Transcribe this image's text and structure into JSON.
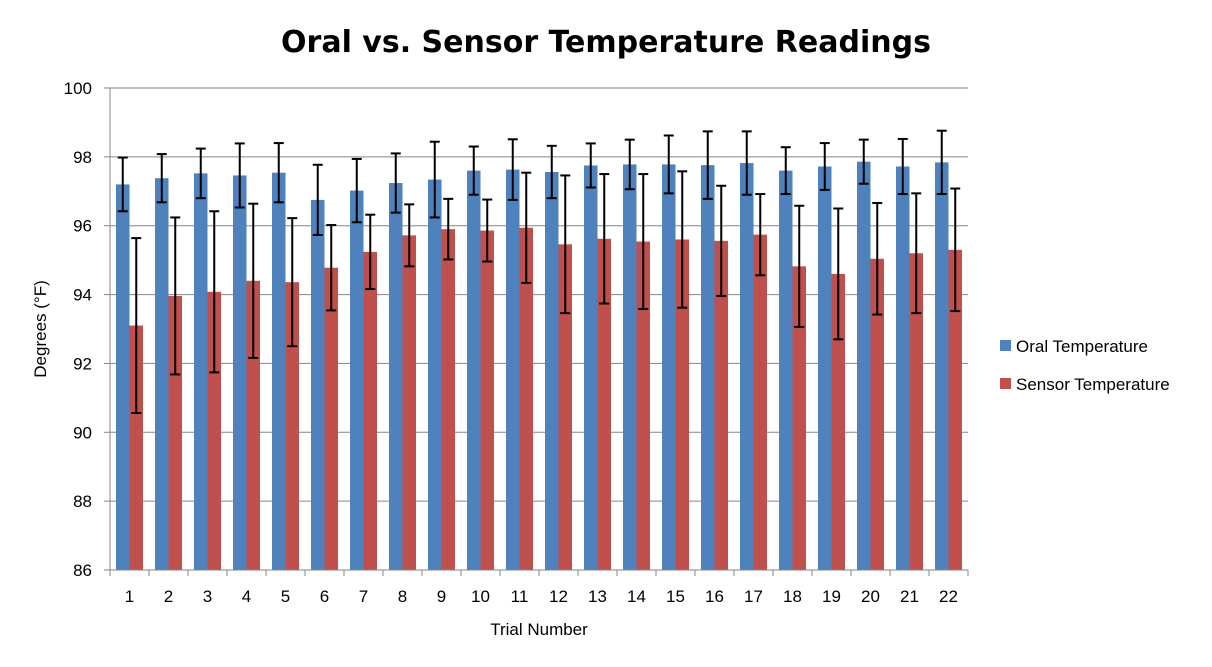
{
  "chart_data": {
    "type": "bar",
    "title": "Oral vs. Sensor Temperature Readings",
    "xlabel": "Trial Number",
    "ylabel": "Degrees (°F)",
    "ylim": [
      86,
      100
    ],
    "yticks": [
      86,
      88,
      90,
      92,
      94,
      96,
      98,
      100
    ],
    "grid": true,
    "legend_position": "right",
    "categories": [
      "1",
      "2",
      "3",
      "4",
      "5",
      "6",
      "7",
      "8",
      "9",
      "10",
      "11",
      "12",
      "13",
      "14",
      "15",
      "16",
      "17",
      "18",
      "19",
      "20",
      "21",
      "22"
    ],
    "series": [
      {
        "name": "Oral Temperature",
        "color": "#4f81bd",
        "values": [
          97.2,
          97.38,
          97.52,
          97.46,
          97.54,
          96.75,
          97.02,
          97.24,
          97.34,
          97.6,
          97.63,
          97.56,
          97.75,
          97.78,
          97.78,
          97.76,
          97.82,
          97.6,
          97.72,
          97.86,
          97.72,
          97.84
        ],
        "errors": [
          0.78,
          0.7,
          0.72,
          0.93,
          0.86,
          1.02,
          0.92,
          0.86,
          1.1,
          0.7,
          0.88,
          0.76,
          0.64,
          0.72,
          0.84,
          0.98,
          0.92,
          0.68,
          0.68,
          0.64,
          0.8,
          0.92
        ]
      },
      {
        "name": "Sensor Temperature",
        "color": "#c0504d",
        "values": [
          93.1,
          93.96,
          94.08,
          94.4,
          94.36,
          94.78,
          95.24,
          95.72,
          95.9,
          95.86,
          95.94,
          95.46,
          95.62,
          95.54,
          95.6,
          95.56,
          95.74,
          94.82,
          94.6,
          95.04,
          95.2,
          95.3
        ],
        "errors": [
          2.54,
          2.28,
          2.34,
          2.24,
          1.86,
          1.24,
          1.08,
          0.9,
          0.88,
          0.9,
          1.6,
          2.0,
          1.88,
          1.96,
          1.98,
          1.6,
          1.18,
          1.76,
          1.9,
          1.62,
          1.74,
          1.78
        ]
      }
    ]
  }
}
